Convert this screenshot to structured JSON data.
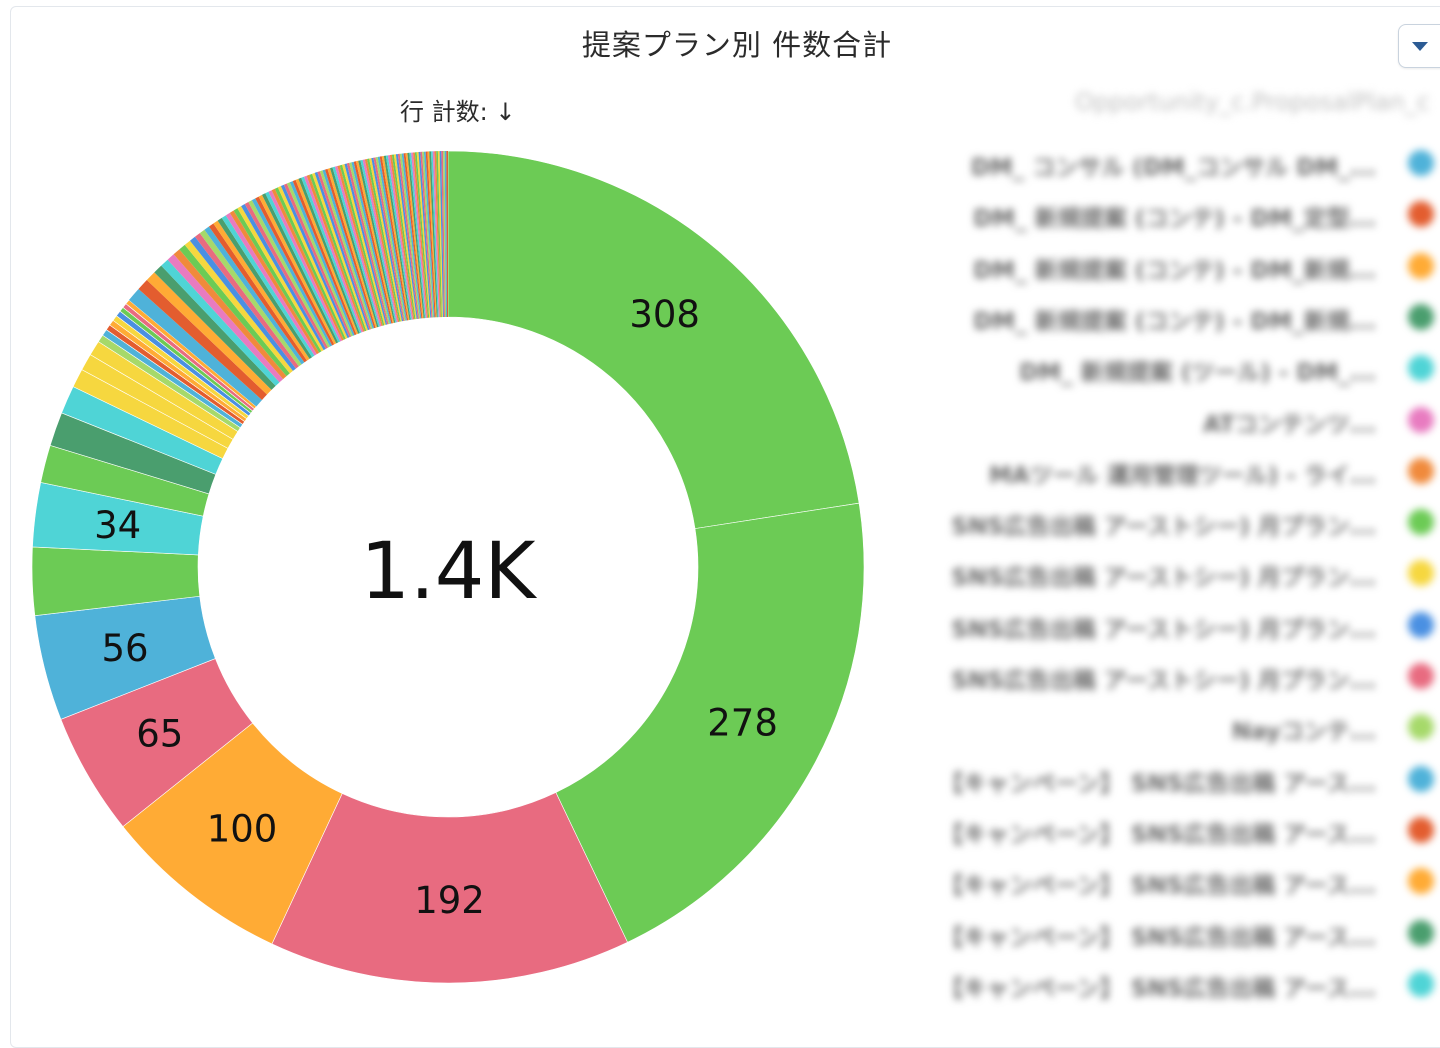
{
  "header": {
    "title": "提案プラン別 件数合計",
    "sort_label": "行 計数: ↓",
    "menu_icon": "chevron-down-icon"
  },
  "chart_data": {
    "type": "pie",
    "subtype": "donut",
    "title": "提案プラン別 件数合計",
    "center_label": "1.4K",
    "slices": [
      {
        "value": 308,
        "color": "#6ccb55",
        "label": "308"
      },
      {
        "value": 278,
        "color": "#6ccb55",
        "label": "278"
      },
      {
        "value": 192,
        "color": "#e86b80",
        "label": "192"
      },
      {
        "value": 100,
        "color": "#ffab35",
        "label": "100"
      },
      {
        "value": 65,
        "color": "#e86b80",
        "label": "65"
      },
      {
        "value": 56,
        "color": "#4fb2d9",
        "label": "56"
      },
      {
        "value": 36,
        "color": "#6ccb55",
        "label": ""
      },
      {
        "value": 34,
        "color": "#4fd4d6",
        "label": "34"
      },
      {
        "value": 20,
        "color": "#6ccb55",
        "label": ""
      },
      {
        "value": 18,
        "color": "#4a9e6e",
        "label": ""
      },
      {
        "value": 15,
        "color": "#4fd4d6",
        "label": ""
      },
      {
        "value": 10,
        "color": "#f6d73f",
        "label": ""
      },
      {
        "value": 9,
        "color": "#f6d73f",
        "label": ""
      },
      {
        "value": 8,
        "color": "#f6d73f",
        "label": ""
      },
      {
        "value": 4,
        "color": "#a6d96a",
        "label": ""
      },
      {
        "value": 3.5,
        "color": "#4fb2d9",
        "label": ""
      },
      {
        "value": 3,
        "color": "#e35d2f",
        "label": ""
      },
      {
        "value": 3,
        "color": "#ffab35",
        "label": ""
      },
      {
        "value": 3,
        "color": "#f6d73f",
        "label": ""
      },
      {
        "value": 3,
        "color": "#4a90e2",
        "label": ""
      },
      {
        "value": 2.5,
        "color": "#6ccb55",
        "label": ""
      },
      {
        "value": 2.5,
        "color": "#e86b80",
        "label": ""
      },
      {
        "value": 2.5,
        "color": "#ffab35",
        "label": ""
      }
    ],
    "tail": {
      "count": 110,
      "total_value": 190,
      "palette": [
        "#4fb2d9",
        "#e35d2f",
        "#ffab35",
        "#4a9e6e",
        "#4fd4d6",
        "#e87bc0",
        "#f08a3c",
        "#6ccb55",
        "#f6d73f",
        "#4a90e2",
        "#e86b80",
        "#a6d96a"
      ]
    },
    "legend_placement": "right"
  },
  "legend": {
    "header": "Opportunity_c.ProposalPlan_c",
    "items": [
      {
        "label": "DM_ コンサル (DM_コンサル DM_...",
        "color": "#4fb2d9"
      },
      {
        "label": "DM_ 新規提案 (コンテ) - DM_定型...",
        "color": "#e35d2f"
      },
      {
        "label": "DM_ 新規提案 (コンテ) - DM_新規...",
        "color": "#ffab35"
      },
      {
        "label": "DM_ 新規提案 (コンテ) - DM_新規...",
        "color": "#4a9e6e"
      },
      {
        "label": "DM_ 新規提案 (ツール) - DM_...",
        "color": "#4fd4d6"
      },
      {
        "label": "ATコンテンツ...",
        "color": "#e87bc0"
      },
      {
        "label": "MAツール 運用管理ツール) - ライ...",
        "color": "#f08a3c"
      },
      {
        "label": "SNS広告出稿 アーストシー) 月プラン...",
        "color": "#6ccb55"
      },
      {
        "label": "SNS広告出稿 アーストシー) 月プラン...",
        "color": "#f6d73f"
      },
      {
        "label": "SNS広告出稿 アーストシー) 月プラン...",
        "color": "#4a90e2"
      },
      {
        "label": "SNS広告出稿 アーストシー) 月プラン...",
        "color": "#e86b80"
      },
      {
        "label": "Nayコンテ...",
        "color": "#a6d96a"
      },
      {
        "label": "【キャンペーン】 SNS広告出稿 アース...",
        "color": "#4fb2d9"
      },
      {
        "label": "【キャンペーン】 SNS広告出稿 アース...",
        "color": "#e35d2f"
      },
      {
        "label": "【キャンペーン】 SNS広告出稿 アース...",
        "color": "#ffab35"
      },
      {
        "label": "【キャンペーン】 SNS広告出稿 アース...",
        "color": "#4a9e6e"
      },
      {
        "label": "【キャンペーン】 SNS広告出稿 アース...",
        "color": "#4fd4d6"
      }
    ]
  }
}
